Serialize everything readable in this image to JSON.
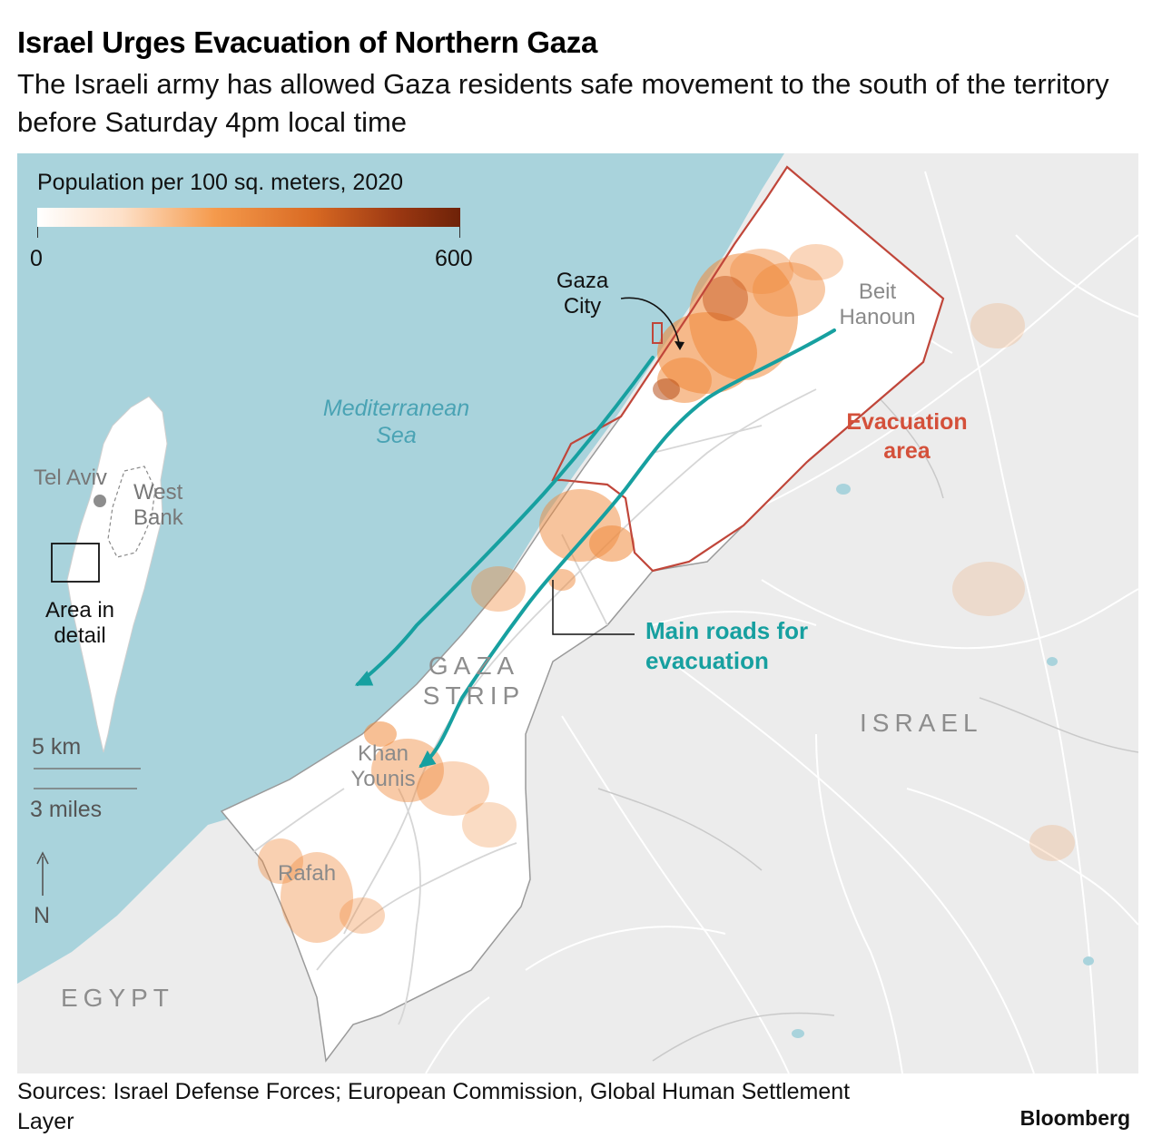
{
  "header": {
    "title": "Israel Urges Evacuation of Northern Gaza",
    "subtitle": "The Israeli army has allowed Gaza residents safe movement to the south of the territory before Saturday 4pm local time"
  },
  "legend": {
    "title": "Population per 100 sq. meters, 2020",
    "min_label": "0",
    "max_label": "600",
    "colors": [
      "#ffffff",
      "#f59a4c",
      "#6e2208"
    ]
  },
  "labels": {
    "sea": "Mediterranean Sea",
    "gaza_city": "Gaza City",
    "beit_hanoun": "Beit Hanoun",
    "evacuation_area": "Evacuation area",
    "main_roads": "Main roads for evacuation",
    "gaza_strip": "GAZA STRIP",
    "israel": "ISRAEL",
    "egypt": "EGYPT",
    "khan_younis": "Khan Younis",
    "rafah": "Rafah",
    "tel_aviv": "Tel Aviv",
    "west_bank": "West Bank",
    "area_in_detail": "Area in detail"
  },
  "scale": {
    "km": "5 km",
    "miles": "3 miles",
    "north": "N"
  },
  "footer": {
    "sources": "Sources: Israel Defense Forces; European Commission, Global Human Settlement Layer",
    "brand": "Bloomberg"
  },
  "colors": {
    "sea": "#a9d3dc",
    "land": "#ececec",
    "evacuation_outline": "#c0463a",
    "roads": "#17a0a0",
    "population": "#f08a3c"
  }
}
